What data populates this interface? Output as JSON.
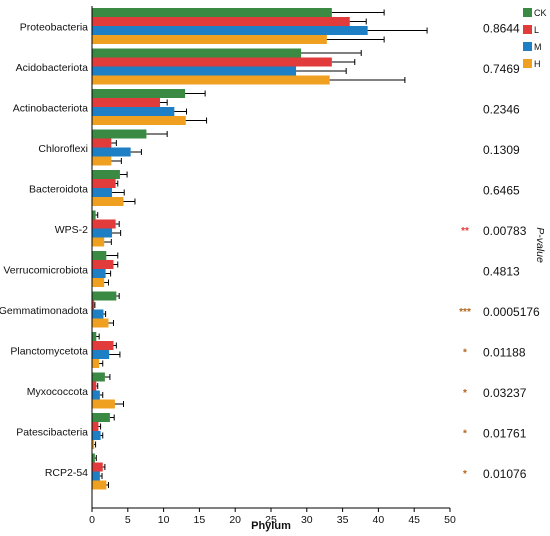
{
  "chart_data": {
    "type": "bar",
    "orientation": "horizontal",
    "xlabel": "Phylum",
    "xlim": [
      0,
      50
    ],
    "xticks": [
      0,
      5,
      10,
      15,
      20,
      25,
      30,
      35,
      40,
      45,
      50
    ],
    "pvalue_axis_label": "P-value",
    "legend_position": "top-right",
    "categories": [
      "Proteobacteria",
      "Acidobacteriota",
      "Actinobacteriota",
      "Chloroflexi",
      "Bacteroidota",
      "WPS-2",
      "Verrucomicrobiota",
      "Gemmatimonadota",
      "Planctomycetota",
      "Myxococcota",
      "Patescibacteria",
      "RCP2-54"
    ],
    "series": [
      {
        "name": "CK",
        "color": "#3a8a44",
        "values": [
          33.5,
          29.2,
          13.0,
          7.6,
          3.9,
          0.5,
          2.0,
          3.4,
          0.6,
          1.8,
          2.5,
          0.4
        ],
        "errors": [
          7.3,
          8.4,
          2.8,
          2.9,
          1.0,
          0.3,
          1.6,
          0.4,
          0.4,
          0.7,
          0.6,
          0.2
        ]
      },
      {
        "name": "L",
        "color": "#e23b3b",
        "values": [
          36.0,
          33.5,
          9.5,
          2.7,
          3.3,
          3.3,
          3.0,
          0.3,
          3.0,
          0.6,
          0.9,
          1.5
        ],
        "errors": [
          2.3,
          3.2,
          1.0,
          0.7,
          0.3,
          0.5,
          0.6,
          0.1,
          0.4,
          0.2,
          0.3,
          0.3
        ]
      },
      {
        "name": "M",
        "color": "#1e7fc4",
        "values": [
          38.5,
          28.5,
          11.5,
          5.4,
          2.8,
          2.8,
          1.9,
          1.6,
          2.4,
          1.1,
          1.2,
          1.1
        ],
        "errors": [
          8.3,
          7.0,
          1.7,
          1.5,
          1.7,
          1.2,
          0.7,
          0.3,
          1.5,
          0.4,
          0.3,
          0.3
        ]
      },
      {
        "name": "H",
        "color": "#f0a020",
        "values": [
          32.8,
          33.2,
          13.1,
          2.7,
          4.4,
          1.7,
          1.7,
          2.3,
          1.0,
          3.2,
          0.3,
          2.0
        ],
        "errors": [
          8.0,
          10.5,
          2.9,
          1.4,
          1.6,
          1.0,
          0.6,
          0.7,
          0.5,
          1.2,
          0.2,
          0.3
        ]
      }
    ],
    "significance": [
      "",
      "",
      "",
      "",
      "",
      "**",
      "",
      "***",
      "*",
      "*",
      "*",
      "*"
    ],
    "significance_colors": [
      "",
      "",
      "",
      "",
      "",
      "#e23b3b",
      "",
      "#b5651d",
      "#b5651d",
      "#b5651d",
      "#b5651d",
      "#b5651d"
    ],
    "pvalues": [
      "0.8644",
      "0.7469",
      "0.2346",
      "0.1309",
      "0.6465",
      "0.00783",
      "0.4813",
      "0.0005176",
      "0.01188",
      "0.03237",
      "0.01761",
      "0.01076"
    ]
  }
}
